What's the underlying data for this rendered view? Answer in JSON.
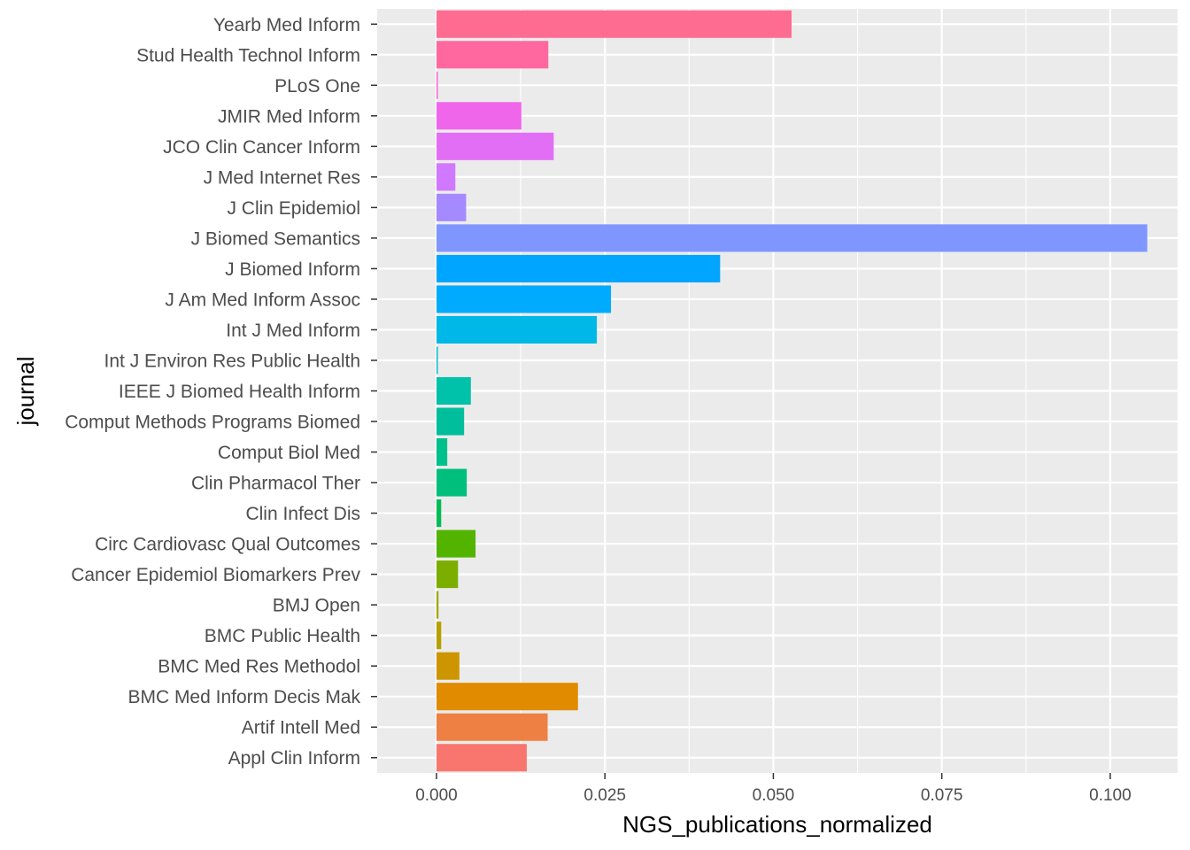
{
  "chart_data": {
    "type": "bar",
    "orientation": "horizontal",
    "xlabel": "NGS_publications_normalized",
    "ylabel": "journal",
    "xlim": [
      -0.0088,
      0.11
    ],
    "x_ticks": [
      0.0,
      0.025,
      0.05,
      0.075,
      0.1
    ],
    "x_tick_labels": [
      "0.000",
      "0.025",
      "0.050",
      "0.075",
      "0.100"
    ],
    "grid": true,
    "legend": "none",
    "categories": [
      "Yearb Med Inform",
      "Stud Health Technol Inform",
      "PLoS One",
      "JMIR Med Inform",
      "JCO Clin Cancer Inform",
      "J Med Internet Res",
      "J Clin Epidemiol",
      "J Biomed Semantics",
      "J Biomed Inform",
      "J Am Med Inform Assoc",
      "Int J Med Inform",
      "Int J Environ Res Public Health",
      "IEEE J Biomed Health Inform",
      "Comput Methods Programs Biomed",
      "Comput Biol Med",
      "Clin Pharmacol Ther",
      "Clin Infect Dis",
      "Circ Cardiovasc Qual Outcomes",
      "Cancer Epidemiol Biomarkers Prev",
      "BMJ Open",
      "BMC Public Health",
      "BMC Med Res Methodol",
      "BMC Med Inform Decis Mak",
      "Artif Intell Med",
      "Appl Clin Inform"
    ],
    "values": [
      0.0527,
      0.0166,
      0.0002,
      0.0126,
      0.0174,
      0.0028,
      0.0044,
      0.1055,
      0.0421,
      0.0259,
      0.0238,
      0.0002,
      0.0051,
      0.0041,
      0.0016,
      0.0045,
      0.0007,
      0.0058,
      0.0032,
      0.0003,
      0.0007,
      0.0034,
      0.021,
      0.0165,
      0.0134
    ],
    "colors": [
      "#FF6C91",
      "#FF689F",
      "#FC61D5",
      "#F066EA",
      "#E36EF6",
      "#D078FF",
      "#A58AFF",
      "#7F96FF",
      "#00A5FF",
      "#00ABFD",
      "#00B8E7",
      "#00BDD2",
      "#00C1AA",
      "#00BE9C",
      "#00C08B",
      "#00BF7D",
      "#00BC56",
      "#53B400",
      "#7CAE00",
      "#9DA700",
      "#B79F00",
      "#CD9600",
      "#E08B00",
      "#EE8044",
      "#F8766D"
    ]
  }
}
